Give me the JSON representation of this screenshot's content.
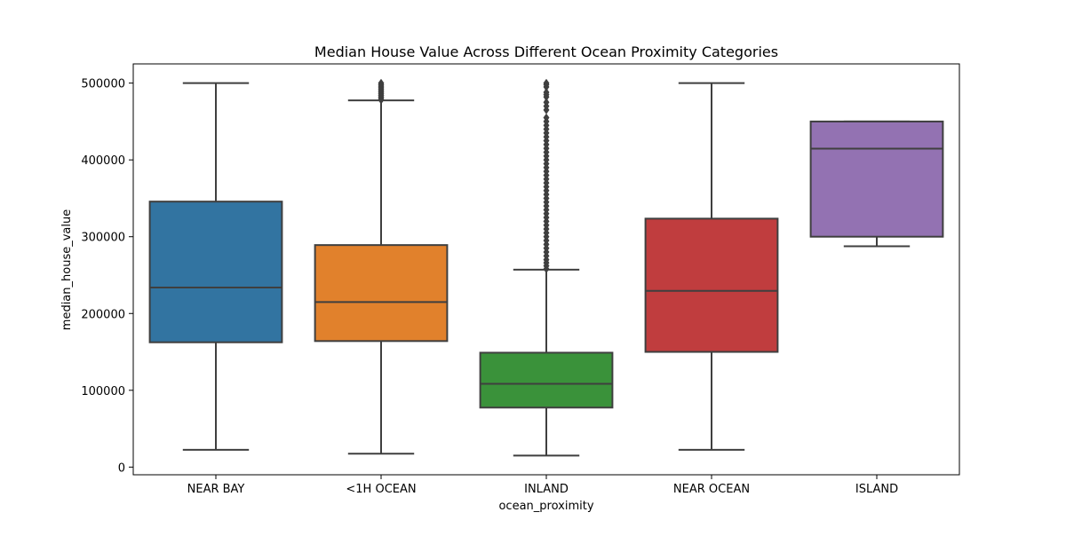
{
  "chart_data": {
    "type": "box",
    "title": "Median House Value Across Different Ocean Proximity Categories",
    "xlabel": "ocean_proximity",
    "ylabel": "median_house_value",
    "ylim": [
      -10000,
      525000
    ],
    "yticks": [
      0,
      100000,
      200000,
      300000,
      400000,
      500000
    ],
    "ytick_labels": [
      "0",
      "100000",
      "200000",
      "300000",
      "400000",
      "500000"
    ],
    "grid": false,
    "categories": [
      "NEAR BAY",
      "<1H OCEAN",
      "INLAND",
      "NEAR OCEAN",
      "ISLAND"
    ],
    "colors": [
      "#3274a1",
      "#e1812c",
      "#3a923a",
      "#c03d3e",
      "#9372b2"
    ],
    "boxes": [
      {
        "category": "NEAR BAY",
        "whisker_low": 22500,
        "q1": 162500,
        "median": 233800,
        "q3": 345700,
        "whisker_high": 500001,
        "outliers": []
      },
      {
        "category": "<1H OCEAN",
        "whisker_low": 17500,
        "q1": 164100,
        "median": 214850,
        "q3": 289100,
        "whisker_high": 477500,
        "outliers": [
          478000,
          480000,
          482000,
          484000,
          486000,
          488000,
          490000,
          492000,
          494000,
          496000,
          498000,
          500001
        ]
      },
      {
        "category": "INLAND",
        "whisker_low": 14999,
        "q1": 77500,
        "median": 108500,
        "q3": 148950,
        "whisker_high": 257000,
        "outliers": [
          258000,
          262000,
          266000,
          270000,
          275000,
          280000,
          285000,
          290000,
          295000,
          300000,
          305000,
          310000,
          315000,
          320000,
          325000,
          330000,
          335000,
          340000,
          345000,
          350000,
          355000,
          360000,
          365000,
          370000,
          375000,
          380000,
          385000,
          390000,
          395000,
          400000,
          405000,
          410000,
          415000,
          420000,
          425000,
          430000,
          435000,
          440000,
          445000,
          450000,
          455000,
          465000,
          470000,
          475000,
          482000,
          485000,
          488000,
          495000,
          498000,
          500001
        ]
      },
      {
        "category": "NEAR OCEAN",
        "whisker_low": 22500,
        "q1": 150000,
        "median": 229450,
        "q3": 323500,
        "whisker_high": 500001,
        "outliers": []
      },
      {
        "category": "ISLAND",
        "whisker_low": 287500,
        "q1": 300000,
        "median": 414700,
        "q3": 450000,
        "whisker_high": 450000,
        "outliers": []
      }
    ]
  }
}
